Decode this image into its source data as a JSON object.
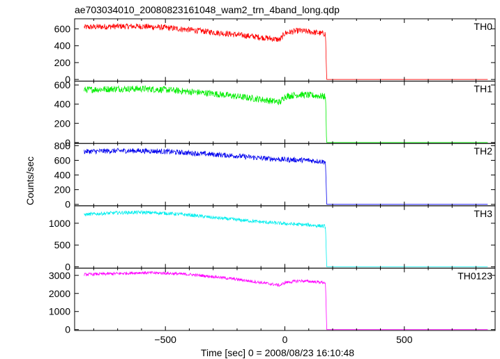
{
  "chart_data": {
    "type": "line",
    "title": "ae703034010_20080823161048_wam2_trn_4band_long.qdp",
    "xlabel": "Time [sec] 0 = 2008/08/23 16:10:48",
    "ylabel": "Counts/sec",
    "xlim": [
      -880,
      880
    ],
    "x_ticks": [
      -500,
      0,
      500
    ],
    "x_tick_labels": [
      "−500",
      "0",
      "500"
    ],
    "grid": false,
    "panels": [
      {
        "name": "TH0",
        "color": "#ff0000",
        "ylim": [
          -20,
          720
        ],
        "yticks": [
          0,
          200,
          400,
          600
        ],
        "ytick_labels": [
          "0",
          "200",
          "400",
          "600"
        ],
        "series": {
          "x": [
            -840,
            -700,
            -600,
            -500,
            -400,
            -300,
            -200,
            -100,
            -20,
            0,
            60,
            120,
            170,
            175,
            850
          ],
          "y": [
            620,
            630,
            630,
            615,
            590,
            560,
            530,
            500,
            470,
            550,
            580,
            560,
            540,
            0,
            0
          ]
        },
        "noise": 35
      },
      {
        "name": "TH1",
        "color": "#00ee00",
        "ylim": [
          -10,
          640
        ],
        "yticks": [
          0,
          200,
          400,
          600
        ],
        "ytick_labels": [
          "0",
          "200",
          "400",
          "600"
        ],
        "series": {
          "x": [
            -840,
            -700,
            -600,
            -500,
            -400,
            -300,
            -200,
            -100,
            -20,
            0,
            60,
            120,
            170,
            175,
            850
          ],
          "y": [
            550,
            560,
            560,
            550,
            530,
            510,
            480,
            450,
            420,
            480,
            500,
            490,
            480,
            0,
            0
          ]
        },
        "noise": 35
      },
      {
        "name": "TH2",
        "color": "#0000ee",
        "ylim": [
          -20,
          830
        ],
        "yticks": [
          0,
          200,
          400,
          600,
          800
        ],
        "ytick_labels": [
          "0",
          "200",
          "400",
          "600",
          "800"
        ],
        "series": {
          "x": [
            -840,
            -700,
            -600,
            -500,
            -400,
            -300,
            -200,
            -100,
            0,
            100,
            170,
            175,
            850
          ],
          "y": [
            720,
            730,
            730,
            720,
            700,
            680,
            660,
            630,
            610,
            600,
            580,
            0,
            0
          ]
        },
        "noise": 35
      },
      {
        "name": "TH3",
        "color": "#00eeee",
        "ylim": [
          -30,
          1400
        ],
        "yticks": [
          0,
          500,
          1000
        ],
        "ytick_labels": [
          "0",
          "500",
          "1000"
        ],
        "series": {
          "x": [
            -840,
            -700,
            -600,
            -500,
            -400,
            -300,
            -200,
            -100,
            0,
            100,
            170,
            175,
            850
          ],
          "y": [
            1200,
            1240,
            1250,
            1230,
            1190,
            1130,
            1080,
            1030,
            990,
            960,
            930,
            0,
            0
          ]
        },
        "noise": 40
      },
      {
        "name": "TH0123",
        "color": "#ff00ff",
        "ylim": [
          -50,
          3400
        ],
        "yticks": [
          0,
          1000,
          2000,
          3000
        ],
        "ytick_labels": [
          "0",
          "1000",
          "2000",
          "3000"
        ],
        "series": {
          "x": [
            -840,
            -700,
            -600,
            -500,
            -400,
            -300,
            -200,
            -100,
            -20,
            0,
            60,
            120,
            170,
            175,
            850
          ],
          "y": [
            3050,
            3100,
            3150,
            3120,
            3050,
            2930,
            2780,
            2600,
            2450,
            2600,
            2700,
            2650,
            2600,
            0,
            0
          ]
        },
        "noise": 80
      }
    ]
  }
}
